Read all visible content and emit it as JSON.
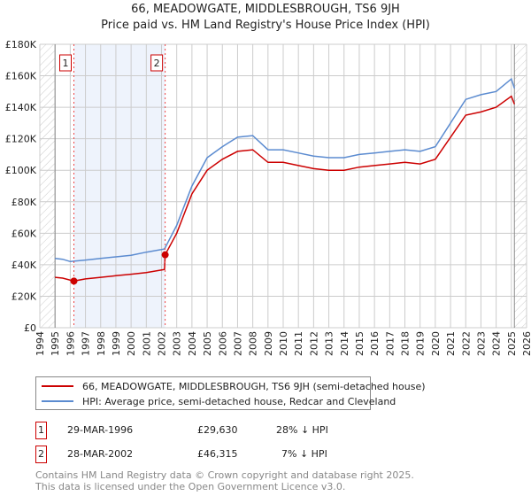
{
  "title": "66, MEADOWGATE, MIDDLESBROUGH, TS6 9JH",
  "subtitle": "Price paid vs. HM Land Registry's House Price Index (HPI)",
  "chart_data": {
    "type": "line",
    "xlim": [
      1994,
      2026
    ],
    "ylim": [
      0,
      180000
    ],
    "yticks": [
      {
        "v": 0,
        "label": "£0"
      },
      {
        "v": 20000,
        "label": "£20K"
      },
      {
        "v": 40000,
        "label": "£40K"
      },
      {
        "v": 60000,
        "label": "£60K"
      },
      {
        "v": 80000,
        "label": "£80K"
      },
      {
        "v": 100000,
        "label": "£100K"
      },
      {
        "v": 120000,
        "label": "£120K"
      },
      {
        "v": 140000,
        "label": "£140K"
      },
      {
        "v": 160000,
        "label": "£160K"
      },
      {
        "v": 180000,
        "label": "£180K"
      }
    ],
    "xticks": [
      "1994",
      "1995",
      "1996",
      "1997",
      "1998",
      "1999",
      "2000",
      "2001",
      "2002",
      "2003",
      "2004",
      "2005",
      "2006",
      "2007",
      "2008",
      "2009",
      "2010",
      "2011",
      "2012",
      "2013",
      "2014",
      "2015",
      "2016",
      "2017",
      "2018",
      "2019",
      "2020",
      "2021",
      "2022",
      "2023",
      "2024",
      "2025",
      "2026"
    ],
    "grid": true,
    "colors": {
      "property": "#cc0000",
      "hpi": "#5b8bd0"
    },
    "series": [
      {
        "name": "66, MEADOWGATE, MIDDLESBROUGH, TS6 9JH (semi-detached house)",
        "x": [
          1995,
          1995.5,
          1996.24,
          1997,
          1998,
          1999,
          2000,
          2001,
          2002.2,
          2002.24,
          2003,
          2004,
          2005,
          2006,
          2007,
          2008,
          2009,
          2010,
          2011,
          2012,
          2013,
          2014,
          2015,
          2016,
          2017,
          2018,
          2019,
          2020,
          2021,
          2022,
          2023,
          2024,
          2025,
          2025.2
        ],
        "y": [
          32000,
          31500,
          29630,
          31000,
          32000,
          33000,
          34000,
          35000,
          37000,
          46315,
          60000,
          85000,
          100000,
          107000,
          112000,
          113000,
          105000,
          105000,
          103000,
          101000,
          100000,
          100000,
          102000,
          103000,
          104000,
          105000,
          104000,
          107000,
          121000,
          135000,
          137000,
          140000,
          147000,
          142000
        ]
      },
      {
        "name": "HPI: Average price, semi-detached house, Redcar and Cleveland",
        "x": [
          1995,
          1995.5,
          1996,
          1997,
          1998,
          1999,
          2000,
          2001,
          2002.2,
          2003,
          2004,
          2005,
          2006,
          2007,
          2008,
          2009,
          2010,
          2011,
          2012,
          2013,
          2014,
          2015,
          2016,
          2017,
          2018,
          2019,
          2020,
          2021,
          2022,
          2023,
          2024,
          2025,
          2025.2
        ],
        "y": [
          44000,
          43500,
          42000,
          43000,
          44000,
          45000,
          46000,
          48000,
          50000,
          65000,
          90000,
          108000,
          115000,
          121000,
          122000,
          113000,
          113000,
          111000,
          109000,
          108000,
          108000,
          110000,
          111000,
          112000,
          113000,
          112000,
          115000,
          130000,
          145000,
          148000,
          150000,
          158000,
          152000
        ]
      }
    ],
    "annotations": [
      {
        "label": "1",
        "x": 1996.24,
        "y": 29630
      },
      {
        "label": "2",
        "x": 2002.24,
        "y": 46315
      }
    ]
  },
  "legend": {
    "property": "66, MEADOWGATE, MIDDLESBROUGH, TS6 9JH (semi-detached house)",
    "hpi": "HPI: Average price, semi-detached house, Redcar and Cleveland"
  },
  "sales": [
    {
      "num": "1",
      "date": "29-MAR-1996",
      "price": "£29,630",
      "hpi": "28% ↓ HPI"
    },
    {
      "num": "2",
      "date": "28-MAR-2002",
      "price": "£46,315",
      "hpi": "7% ↓ HPI"
    }
  ],
  "footer": [
    "Contains HM Land Registry data © Crown copyright and database right 2025.",
    "This data is licensed under the Open Government Licence v3.0."
  ]
}
